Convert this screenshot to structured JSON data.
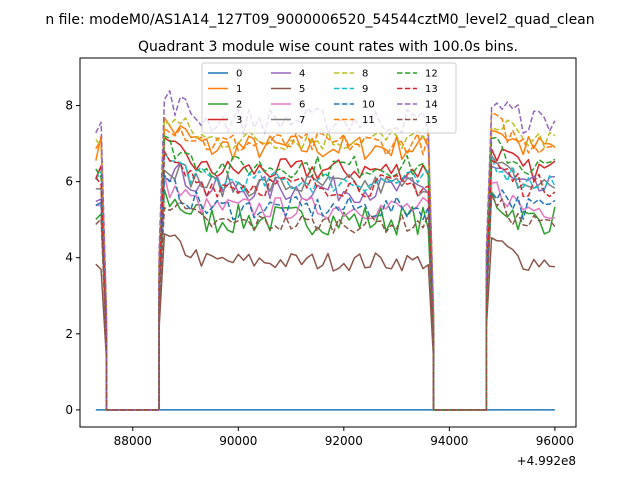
{
  "header": {
    "suptitle": "n file: modeM0/AS1A14_127T09_9000006520_54544cztM0_level2_quad_clean",
    "title": "Quadrant 3 module wise count rates with 100.0s bins."
  },
  "chart_data": {
    "type": "line",
    "title": "Quadrant 3 module wise count rates with 100.0s bins.",
    "xlabel": "",
    "ylabel": "",
    "x_offset_label": "+4.992e8",
    "xlim": [
      87000,
      96400
    ],
    "ylim": [
      -0.45,
      9.25
    ],
    "xticks": [
      88000,
      90000,
      92000,
      94000,
      96000
    ],
    "xtick_labels": [
      "88000",
      "90000",
      "92000",
      "94000",
      "96000"
    ],
    "yticks": [
      0,
      2,
      4,
      6,
      8
    ],
    "ytick_labels": [
      "0",
      "2",
      "4",
      "6",
      "8"
    ],
    "legend": {
      "placement": "top-center",
      "ncol": 4
    },
    "segments": [
      {
        "start": 87300,
        "end": 87500,
        "step": 100
      },
      {
        "start": 87500,
        "end": 88500,
        "step": 100,
        "zero": true
      },
      {
        "start": 88500,
        "end": 93700,
        "step": 100
      },
      {
        "start": 93700,
        "end": 94700,
        "step": 100,
        "zero": true
      },
      {
        "start": 94700,
        "end": 96000,
        "step": 100
      }
    ],
    "series": [
      {
        "name": "0",
        "color": "#1f77b4",
        "dash": "solid",
        "level": 0.0,
        "noise": 0.0
      },
      {
        "name": "1",
        "color": "#ff7f0e",
        "dash": "solid",
        "level": 6.9,
        "noise": 0.35
      },
      {
        "name": "2",
        "color": "#2ca02c",
        "dash": "solid",
        "level": 5.0,
        "noise": 0.4
      },
      {
        "name": "3",
        "color": "#d62728",
        "dash": "solid",
        "level": 6.3,
        "noise": 0.3
      },
      {
        "name": "4",
        "color": "#9467bd",
        "dash": "solid",
        "level": 5.8,
        "noise": 0.35
      },
      {
        "name": "5",
        "color": "#8c564b",
        "dash": "solid",
        "level": 3.9,
        "noise": 0.25
      },
      {
        "name": "6",
        "color": "#e377c2",
        "dash": "solid",
        "level": 5.3,
        "noise": 0.3
      },
      {
        "name": "7",
        "color": "#7f7f7f",
        "dash": "solid",
        "level": 5.9,
        "noise": 0.3
      },
      {
        "name": "8",
        "color": "#bcbd22",
        "dash": "dashed",
        "level": 7.1,
        "noise": 0.3
      },
      {
        "name": "9",
        "color": "#17becf",
        "dash": "dashed",
        "level": 6.0,
        "noise": 0.3
      },
      {
        "name": "10",
        "color": "#1f77b4",
        "dash": "dashed",
        "level": 5.3,
        "noise": 0.3
      },
      {
        "name": "11",
        "color": "#ff7f0e",
        "dash": "dashed",
        "level": 7.0,
        "noise": 0.3
      },
      {
        "name": "12",
        "color": "#2ca02c",
        "dash": "dashed",
        "level": 6.4,
        "noise": 0.3
      },
      {
        "name": "13",
        "color": "#d62728",
        "dash": "dashed",
        "level": 5.9,
        "noise": 0.3
      },
      {
        "name": "14",
        "color": "#9467bd",
        "dash": "dashed",
        "level": 7.6,
        "noise": 0.35
      },
      {
        "name": "15",
        "color": "#8c564b",
        "dash": "dashed",
        "level": 4.9,
        "noise": 0.25
      }
    ]
  }
}
